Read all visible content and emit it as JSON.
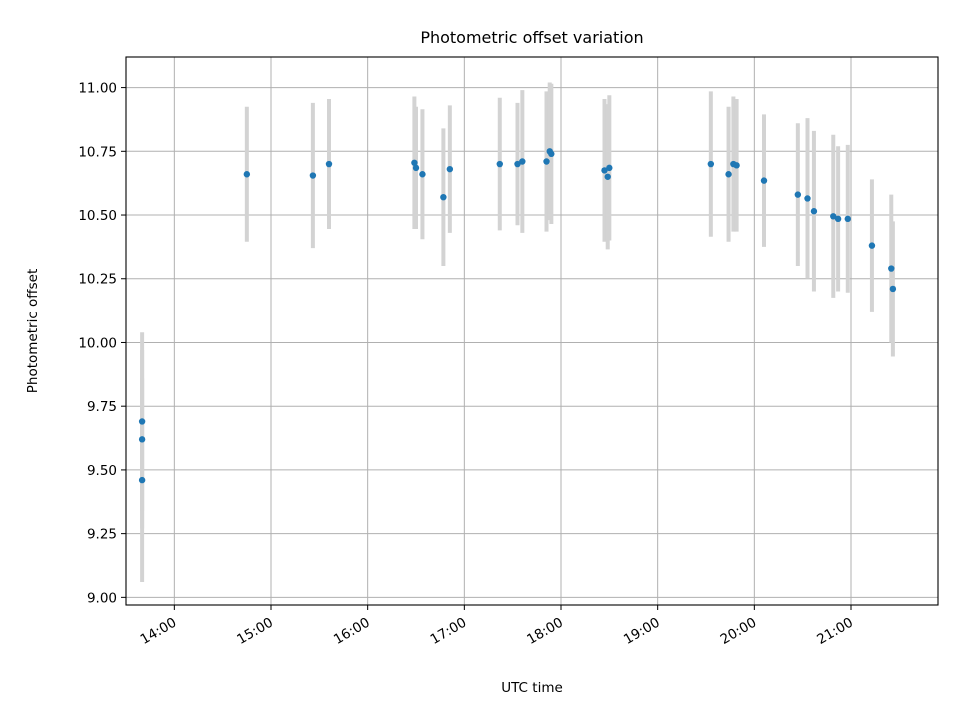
{
  "chart_data": {
    "type": "scatter",
    "title": "Photometric offset variation",
    "xlabel": "UTC time",
    "ylabel": "Photometric offset",
    "x_unit": "time of day (UTC, HH:MM)",
    "xlim": [
      "13:30",
      "21:54"
    ],
    "ylim": [
      8.97,
      11.12
    ],
    "x_ticks": [
      "14:00",
      "15:00",
      "16:00",
      "17:00",
      "18:00",
      "19:00",
      "20:00",
      "21:00"
    ],
    "y_ticks": [
      "9.00",
      "9.25",
      "9.50",
      "9.75",
      "10.00",
      "10.25",
      "10.50",
      "10.75",
      "11.00"
    ],
    "grid": true,
    "x_tick_rotation_deg": 30,
    "colors": {
      "point": "#1f77b4",
      "errorbar": "#d3d3d3",
      "grid": "#b0b0b0"
    },
    "series": [
      {
        "points": [
          {
            "x": "13:40",
            "y": 9.69,
            "yerr": 0.35
          },
          {
            "x": "13:40",
            "y": 9.62,
            "yerr": 0.35
          },
          {
            "x": "13:40",
            "y": 9.46,
            "yerr": 0.4
          },
          {
            "x": "14:45",
            "y": 10.66,
            "yerr": 0.265
          },
          {
            "x": "15:26",
            "y": 10.655,
            "yerr": 0.285
          },
          {
            "x": "15:36",
            "y": 10.7,
            "yerr": 0.255
          },
          {
            "x": "16:29",
            "y": 10.705,
            "yerr": 0.26
          },
          {
            "x": "16:30",
            "y": 10.685,
            "yerr": 0.24
          },
          {
            "x": "16:34",
            "y": 10.66,
            "yerr": 0.255
          },
          {
            "x": "16:47",
            "y": 10.57,
            "yerr": 0.27
          },
          {
            "x": "16:51",
            "y": 10.68,
            "yerr": 0.25
          },
          {
            "x": "17:22",
            "y": 10.7,
            "yerr": 0.26
          },
          {
            "x": "17:33",
            "y": 10.7,
            "yerr": 0.24
          },
          {
            "x": "17:36",
            "y": 10.71,
            "yerr": 0.28
          },
          {
            "x": "17:51",
            "y": 10.71,
            "yerr": 0.275
          },
          {
            "x": "17:53",
            "y": 10.75,
            "yerr": 0.27
          },
          {
            "x": "17:54",
            "y": 10.74,
            "yerr": 0.275
          },
          {
            "x": "18:27",
            "y": 10.675,
            "yerr": 0.28
          },
          {
            "x": "18:29",
            "y": 10.65,
            "yerr": 0.285
          },
          {
            "x": "18:30",
            "y": 10.685,
            "yerr": 0.285
          },
          {
            "x": "19:33",
            "y": 10.7,
            "yerr": 0.285
          },
          {
            "x": "19:44",
            "y": 10.66,
            "yerr": 0.265
          },
          {
            "x": "19:47",
            "y": 10.7,
            "yerr": 0.265
          },
          {
            "x": "19:49",
            "y": 10.695,
            "yerr": 0.26
          },
          {
            "x": "20:06",
            "y": 10.635,
            "yerr": 0.26
          },
          {
            "x": "20:27",
            "y": 10.58,
            "yerr": 0.28
          },
          {
            "x": "20:33",
            "y": 10.565,
            "yerr": 0.315
          },
          {
            "x": "20:37",
            "y": 10.515,
            "yerr": 0.315
          },
          {
            "x": "20:49",
            "y": 10.495,
            "yerr": 0.32
          },
          {
            "x": "20:52",
            "y": 10.485,
            "yerr": 0.285
          },
          {
            "x": "20:58",
            "y": 10.485,
            "yerr": 0.29
          },
          {
            "x": "21:13",
            "y": 10.38,
            "yerr": 0.26
          },
          {
            "x": "21:25",
            "y": 10.29,
            "yerr": 0.29
          },
          {
            "x": "21:26",
            "y": 10.21,
            "yerr": 0.265
          }
        ]
      }
    ]
  }
}
